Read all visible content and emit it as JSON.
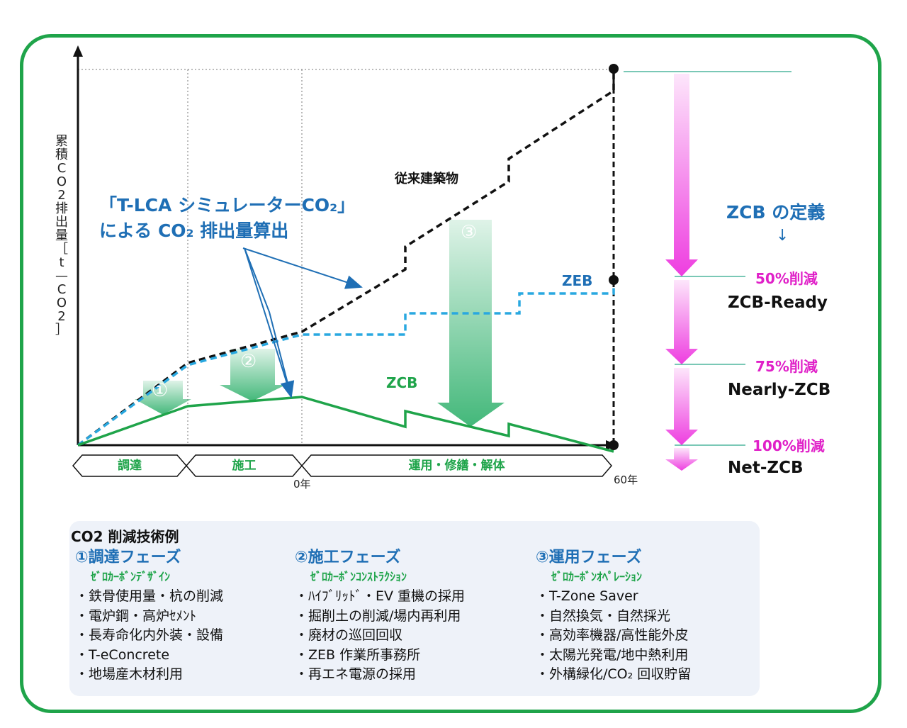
{
  "y_axis_label": [
    "累",
    "積",
    "C",
    "O",
    "2",
    "排",
    "出",
    "量",
    "［",
    "t",
    "—",
    "C",
    "O",
    "2",
    "］"
  ],
  "callout": {
    "line1": "「T-LCA シミュレーターCO₂」",
    "line2": "による CO₂ 排出量算出"
  },
  "series_labels": {
    "conventional": "従来建築物",
    "zeb": "ZEB",
    "zcb": "ZCB"
  },
  "reduction_markers": [
    "①",
    "②",
    "③"
  ],
  "phases": [
    "調達",
    "施工",
    "運用・修繕・解体"
  ],
  "ticks": {
    "zero": "0年",
    "sixty": "60年"
  },
  "definition": {
    "title": "ZCB の定義",
    "arrow": "↓",
    "levels": [
      {
        "percent": "50%削減",
        "name": "ZCB-Ready"
      },
      {
        "percent": "75%削減",
        "name": "Nearly-ZCB"
      },
      {
        "percent": "100%削減",
        "name": "Net-ZCB"
      }
    ]
  },
  "techniques": {
    "title": "CO2 削減技術例",
    "columns": [
      {
        "heading": "①調達フェーズ",
        "sub": "ｾﾞﾛｶｰﾎﾞﾝﾃﾞｻﾞｲﾝ",
        "items": [
          "鉄骨使用量・杭の削減",
          "電炉鋼・高炉ｾﾒﾝﾄ",
          "長寿命化内外装・設備",
          "T-eConcrete",
          "地場産木材利用"
        ]
      },
      {
        "heading": "②施工フェーズ",
        "sub": "ｾﾞﾛｶｰﾎﾞﾝｺﾝｽﾄﾗｸｼｮﾝ",
        "items": [
          "ﾊｲﾌﾞﾘｯﾄﾞ・EV 重機の採用",
          "掘削土の削減/場内再利用",
          "廃材の巡回回収",
          "ZEB 作業所事務所",
          "再エネ電源の採用"
        ]
      },
      {
        "heading": "③運用フェーズ",
        "sub": "ｾﾞﾛｶｰﾎﾞﾝｵﾍﾟﾚｰｼｮﾝ",
        "items": [
          "T-Zone Saver",
          "自然換気・自然採光",
          "高効率機器/高性能外皮",
          "太陽光発電/地中熱利用",
          "外構緑化/CO₂ 回収貯留"
        ]
      }
    ]
  },
  "colors": {
    "frame": "#1fa44a",
    "zcb_line": "#1fa44a",
    "zeb_line": "#29a8e0",
    "conventional_line": "#111111",
    "accent_blue": "#1f6fb5",
    "magenta": "#e020c8"
  }
}
